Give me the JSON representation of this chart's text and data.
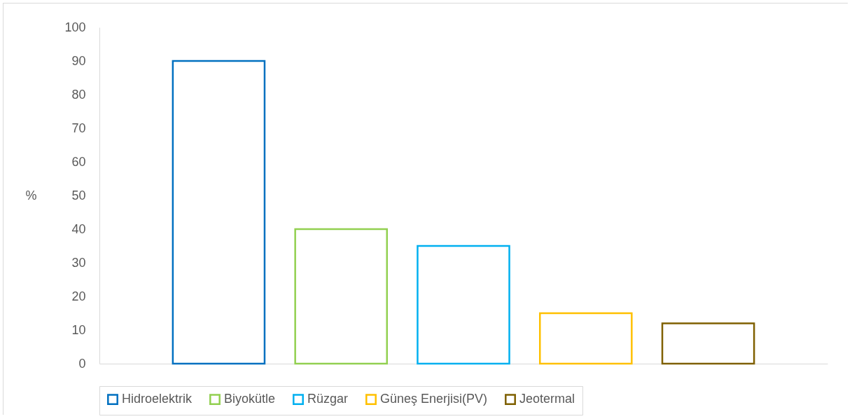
{
  "chart_data": {
    "type": "bar",
    "ylabel": "%",
    "categories": [
      null,
      null,
      null,
      null,
      null
    ],
    "series": [
      {
        "name": "Hidroelektrik",
        "color": "#0070c0",
        "values": [
          90,
          null,
          null,
          null,
          null
        ]
      },
      {
        "name": "Biyokütle",
        "color": "#92d050",
        "values": [
          null,
          40,
          null,
          null,
          null
        ]
      },
      {
        "name": "Rüzgar",
        "color": "#00b0f0",
        "values": [
          null,
          null,
          35,
          null,
          null
        ]
      },
      {
        "name": "Güneş Enerjisi(PV)",
        "color": "#ffc000",
        "values": [
          null,
          null,
          null,
          15,
          null
        ]
      },
      {
        "name": "Jeotermal",
        "color": "#7f6000",
        "values": [
          null,
          null,
          null,
          null,
          12
        ]
      }
    ],
    "ylim": [
      0,
      100
    ],
    "yticks": [
      0,
      10,
      20,
      30,
      40,
      50,
      60,
      70,
      80,
      90,
      100
    ],
    "grid": false,
    "legend": "bottom"
  }
}
